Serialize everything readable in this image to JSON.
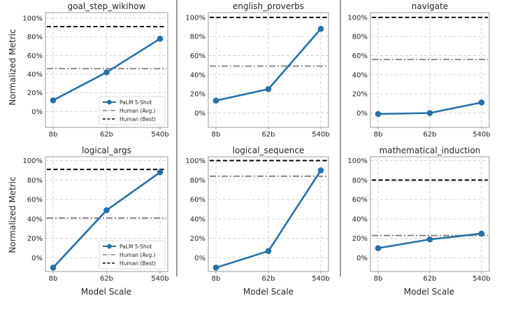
{
  "figure": {
    "ylabel": "Normalized Metric",
    "xlabel": "Model Scale",
    "legend_labels": [
      "PaLM 5-Shot",
      "Human (Avg.)",
      "Human (Best)"
    ]
  },
  "colors": {
    "palm": "#2471aa",
    "human_avg": "#808080",
    "human_best": "#000000",
    "grid": "#cfcfcf",
    "spine": "#999999",
    "divider": "#555555"
  },
  "chart_data": [
    {
      "type": "line",
      "title": "goal_step_wikihow",
      "categories": [
        "8b",
        "62b",
        "540b"
      ],
      "series": [
        {
          "name": "PaLM 5-Shot",
          "values": [
            12,
            42,
            78
          ]
        },
        {
          "name": "Human (Avg.)",
          "values": [
            46,
            46,
            46
          ]
        },
        {
          "name": "Human (Best)",
          "values": [
            91,
            91,
            91
          ]
        }
      ],
      "ylim": [
        -17,
        106
      ],
      "yticks": [
        0,
        20,
        40,
        60,
        80,
        100
      ],
      "ytick_labels": [
        "0%",
        "20%",
        "40%",
        "60%",
        "80%",
        "100%"
      ],
      "legend": "lower-right",
      "grid": true
    },
    {
      "type": "line",
      "title": "english_proverbs",
      "categories": [
        "8b",
        "62b",
        "540b"
      ],
      "series": [
        {
          "name": "PaLM 5-Shot",
          "values": [
            13,
            25,
            88
          ]
        },
        {
          "name": "Human (Avg.)",
          "values": [
            49,
            49,
            49
          ]
        },
        {
          "name": "Human (Best)",
          "values": [
            100,
            100,
            100
          ]
        }
      ],
      "ylim": [
        -15,
        105
      ],
      "yticks": [
        0,
        20,
        40,
        60,
        80,
        100
      ],
      "ytick_labels": [
        "0%",
        "20%",
        "40%",
        "60%",
        "80%",
        "100%"
      ],
      "grid": true
    },
    {
      "type": "line",
      "title": "navigate",
      "categories": [
        "8b",
        "62b",
        "540b"
      ],
      "series": [
        {
          "name": "PaLM 5-Shot",
          "values": [
            -1,
            0,
            11
          ]
        },
        {
          "name": "Human (Avg.)",
          "values": [
            56,
            56,
            56
          ]
        },
        {
          "name": "Human (Best)",
          "values": [
            100,
            100,
            100
          ]
        }
      ],
      "ylim": [
        -15,
        105
      ],
      "yticks": [
        0,
        20,
        40,
        60,
        80,
        100
      ],
      "ytick_labels": [
        "0%",
        "20%",
        "40%",
        "60%",
        "80%",
        "100%"
      ],
      "grid": true
    },
    {
      "type": "line",
      "title": "logical_args",
      "categories": [
        "8b",
        "62b",
        "540b"
      ],
      "series": [
        {
          "name": "PaLM 5-Shot",
          "values": [
            -10,
            49,
            88
          ]
        },
        {
          "name": "Human (Avg.)",
          "values": [
            41,
            41,
            41
          ]
        },
        {
          "name": "Human (Best)",
          "values": [
            91,
            91,
            91
          ]
        }
      ],
      "ylim": [
        -14,
        104
      ],
      "yticks": [
        0,
        20,
        40,
        60,
        80,
        100
      ],
      "ytick_labels": [
        "0%",
        "20%",
        "40%",
        "60%",
        "80%",
        "100%"
      ],
      "legend": "lower-right",
      "grid": true
    },
    {
      "type": "line",
      "title": "logical_sequence",
      "categories": [
        "8b",
        "62b",
        "540b"
      ],
      "series": [
        {
          "name": "PaLM 5-Shot",
          "values": [
            -10,
            7,
            90
          ]
        },
        {
          "name": "Human (Avg.)",
          "values": [
            84,
            84,
            84
          ]
        },
        {
          "name": "Human (Best)",
          "values": [
            100,
            100,
            100
          ]
        }
      ],
      "ylim": [
        -14,
        104
      ],
      "yticks": [
        0,
        20,
        40,
        60,
        80,
        100
      ],
      "ytick_labels": [
        "0%",
        "20%",
        "40%",
        "60%",
        "80%",
        "100%"
      ],
      "grid": true
    },
    {
      "type": "line",
      "title": "mathematical_induction",
      "categories": [
        "8b",
        "62b",
        "540b"
      ],
      "series": [
        {
          "name": "PaLM 5-Shot",
          "values": [
            10,
            19,
            25
          ]
        },
        {
          "name": "Human (Avg.)",
          "values": [
            23,
            23,
            23
          ]
        },
        {
          "name": "Human (Best)",
          "values": [
            80,
            80,
            80
          ]
        }
      ],
      "ylim": [
        -14,
        104
      ],
      "yticks": [
        0,
        20,
        40,
        60,
        80,
        100
      ],
      "ytick_labels": [
        "0%",
        "20%",
        "40%",
        "60%",
        "80%",
        "100%"
      ],
      "grid": true
    }
  ]
}
